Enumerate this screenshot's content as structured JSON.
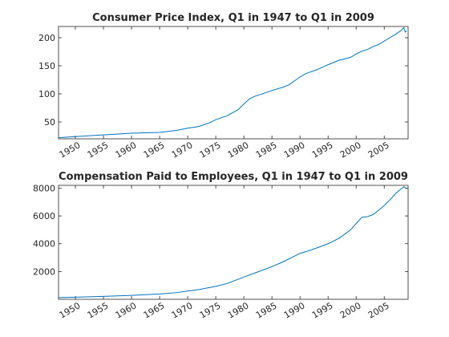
{
  "chart_data": [
    {
      "type": "line",
      "title": "Consumer Price Index, Q1 in 1947 to Q1 in 2009",
      "xlabel": "",
      "ylabel": "",
      "xlim": [
        1947,
        2009.25
      ],
      "ylim": [
        20,
        220
      ],
      "xticks": [
        1950,
        1955,
        1960,
        1965,
        1970,
        1975,
        1980,
        1985,
        1990,
        1995,
        2000,
        2005
      ],
      "yticks": [
        50,
        100,
        150,
        200
      ],
      "grid": false,
      "line_color": "#0072BD",
      "series": [
        {
          "x": [
            1947,
            1950,
            1955,
            1960,
            1965,
            1968,
            1970,
            1972,
            1974,
            1975,
            1977,
            1979,
            1980,
            1981,
            1982,
            1983,
            1985,
            1987,
            1988,
            1990,
            1991,
            1993,
            1995,
            1997,
            1999,
            2000,
            2001,
            2002,
            2003,
            2004,
            2005,
            2006,
            2007,
            2008,
            2008.5,
            2008.75,
            2009
          ],
          "y": [
            22,
            24,
            27,
            30,
            31.5,
            35,
            39,
            42,
            49,
            54,
            61,
            72,
            82,
            91,
            96,
            99,
            106,
            112,
            116,
            130,
            136,
            143,
            152,
            160,
            165,
            171,
            176,
            179,
            184,
            188,
            194,
            200,
            206,
            213,
            218,
            210,
            212
          ]
        }
      ]
    },
    {
      "type": "line",
      "title": "Compensation Paid to Employees, Q1 in 1947 to Q1 in 2009",
      "xlabel": "",
      "ylabel": "",
      "xlim": [
        1947,
        2009.25
      ],
      "ylim": [
        0,
        8200
      ],
      "xticks": [
        1950,
        1955,
        1960,
        1965,
        1970,
        1975,
        1980,
        1985,
        1990,
        1995,
        2000,
        2005
      ],
      "yticks": [
        2000,
        4000,
        6000,
        8000
      ],
      "grid": false,
      "line_color": "#0072BD",
      "series": [
        {
          "x": [
            1947,
            1950,
            1955,
            1960,
            1965,
            1968,
            1970,
            1972,
            1975,
            1977,
            1980,
            1982,
            1985,
            1987,
            1990,
            1992,
            1995,
            1997,
            1999,
            2000,
            2001,
            2002,
            2003,
            2004,
            2005,
            2006,
            2007,
            2008,
            2008.5,
            2009
          ],
          "y": [
            120,
            150,
            210,
            280,
            380,
            480,
            590,
            700,
            930,
            1130,
            1600,
            1900,
            2350,
            2700,
            3300,
            3550,
            4000,
            4400,
            5000,
            5450,
            5900,
            5950,
            6100,
            6400,
            6750,
            7150,
            7600,
            7950,
            8100,
            7950
          ]
        }
      ]
    }
  ]
}
